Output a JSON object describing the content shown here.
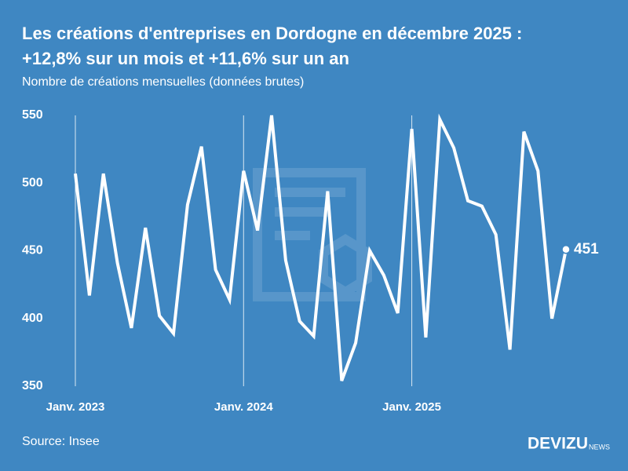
{
  "chart_data": {
    "type": "line",
    "title": "Les créations d'entreprises en Dordogne en décembre 2025 :",
    "title_line2": "+12,8% sur un mois et +11,6% sur un an",
    "subtitle": "Nombre de créations mensuelles (données brutes)",
    "source": "Source: Insee",
    "brand": "DEVIZU",
    "brand_suffix": "NEWS",
    "categories": [
      "Janv. 2023",
      null,
      null,
      null,
      null,
      null,
      null,
      null,
      null,
      null,
      null,
      null,
      "Janv. 2024",
      null,
      null,
      null,
      null,
      null,
      null,
      null,
      null,
      null,
      null,
      null,
      "Janv. 2025",
      null,
      null,
      null,
      null,
      null,
      null,
      null,
      null,
      null,
      null,
      null
    ],
    "values": [
      507,
      417,
      507,
      441,
      393,
      467,
      402,
      389,
      484,
      527,
      436,
      414,
      509,
      465,
      550,
      443,
      398,
      387,
      494,
      354,
      382,
      450,
      432,
      404,
      540,
      386,
      547,
      526,
      487,
      483,
      462,
      377,
      538,
      509,
      400,
      451
    ],
    "color": "#ffffff",
    "ylim": [
      350,
      550
    ],
    "yticks": [
      350,
      400,
      450,
      500,
      550
    ],
    "grid": "x"
  }
}
